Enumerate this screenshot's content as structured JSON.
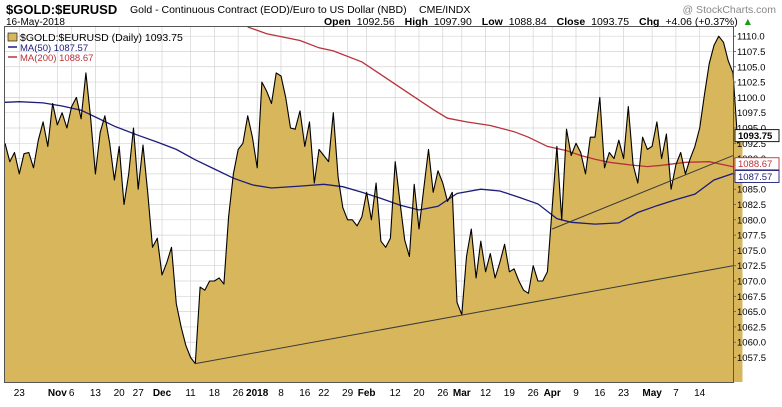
{
  "header": {
    "symbol": "$GOLD:$EURUSD",
    "description": "Gold - Continuous Contract (EOD)/Euro to US Dollar (NBD)",
    "exchange": "CME/INDX",
    "watermark": "@ StockCharts.com",
    "date": "16-May-2018",
    "open_label": "Open",
    "open_value": "1092.56",
    "high_label": "High",
    "high_value": "1097.90",
    "low_label": "Low",
    "low_value": "1088.84",
    "close_label": "Close",
    "close_value": "1093.75",
    "chg_label": "Chg",
    "chg_value": "+4.06 (+0.37%)",
    "up_arrow": "▲"
  },
  "legend": {
    "price": "$GOLD:$EURUSD (Daily) 1093.75",
    "ma50": "MA(50) 1087.57",
    "ma200": "MA(200) 1088.67"
  },
  "colors": {
    "fill": "#d8b75c",
    "price_line": "#000000",
    "ma50": "#1c1c7a",
    "ma200": "#b8323a",
    "grid": "#d4d4d4",
    "trendline": "#3a3a3a"
  },
  "chart_data": {
    "type": "area",
    "y_range": [
      1053.5,
      1111.5
    ],
    "x_range": [
      0,
      153
    ],
    "y_ticks": [
      1057.5,
      1060,
      1062.5,
      1065,
      1067.5,
      1070,
      1072.5,
      1075,
      1077.5,
      1080,
      1082.5,
      1085,
      1087.5,
      1090,
      1092.5,
      1095,
      1097.5,
      1100,
      1102.5,
      1105,
      1107.5,
      1110
    ],
    "x_ticks": [
      {
        "i": 3,
        "label": "23",
        "bold": false
      },
      {
        "i": 11,
        "label": "Nov",
        "bold": true
      },
      {
        "i": 14,
        "label": "6",
        "bold": false
      },
      {
        "i": 19,
        "label": "13",
        "bold": false
      },
      {
        "i": 24,
        "label": "20",
        "bold": false
      },
      {
        "i": 28,
        "label": "27",
        "bold": false
      },
      {
        "i": 33,
        "label": "Dec",
        "bold": true
      },
      {
        "i": 39,
        "label": "11",
        "bold": false
      },
      {
        "i": 44,
        "label": "18",
        "bold": false
      },
      {
        "i": 49,
        "label": "26",
        "bold": false
      },
      {
        "i": 53,
        "label": "2018",
        "bold": true
      },
      {
        "i": 58,
        "label": "8",
        "bold": false
      },
      {
        "i": 63,
        "label": "16",
        "bold": false
      },
      {
        "i": 67,
        "label": "22",
        "bold": false
      },
      {
        "i": 72,
        "label": "29",
        "bold": false
      },
      {
        "i": 76,
        "label": "Feb",
        "bold": true
      },
      {
        "i": 82,
        "label": "12",
        "bold": false
      },
      {
        "i": 87,
        "label": "20",
        "bold": false
      },
      {
        "i": 92,
        "label": "26",
        "bold": false
      },
      {
        "i": 96,
        "label": "Mar",
        "bold": true
      },
      {
        "i": 101,
        "label": "12",
        "bold": false
      },
      {
        "i": 106,
        "label": "19",
        "bold": false
      },
      {
        "i": 111,
        "label": "26",
        "bold": false
      },
      {
        "i": 115,
        "label": "Apr",
        "bold": true
      },
      {
        "i": 120,
        "label": "9",
        "bold": false
      },
      {
        "i": 125,
        "label": "16",
        "bold": false
      },
      {
        "i": 130,
        "label": "23",
        "bold": false
      },
      {
        "i": 136,
        "label": "May",
        "bold": true
      },
      {
        "i": 141,
        "label": "7",
        "bold": false
      },
      {
        "i": 146,
        "label": "14",
        "bold": false
      }
    ],
    "price": [
      1092.5,
      1089.5,
      1091,
      1087.5,
      1090.8,
      1091,
      1088.5,
      1093,
      1096,
      1092,
      1099,
      1095.5,
      1097.5,
      1095,
      1098.5,
      1100,
      1096.5,
      1104,
      1096.7,
      1087.5,
      1094.3,
      1097,
      1092.5,
      1086.5,
      1092,
      1082.5,
      1087.5,
      1095,
      1085,
      1092.2,
      1084.5,
      1075.5,
      1077,
      1071,
      1073,
      1075.5,
      1066.3,
      1062.5,
      1059.5,
      1057.5,
      1056.5,
      1069,
      1068.5,
      1070,
      1070,
      1070.5,
      1069.5,
      1080.5,
      1087.5,
      1091.5,
      1092.5,
      1097,
      1093.5,
      1088.5,
      1102.5,
      1101,
      1099,
      1104,
      1103.5,
      1100,
      1095,
      1094.8,
      1097.8,
      1092,
      1096,
      1086,
      1091.5,
      1090.5,
      1089.5,
      1097.5,
      1087,
      1082,
      1080,
      1080,
      1079,
      1080.5,
      1084.5,
      1080,
      1086,
      1076.5,
      1075.5,
      1077,
      1089.5,
      1083,
      1076.7,
      1074,
      1085.8,
      1078.5,
      1085,
      1091.5,
      1084.5,
      1088,
      1086,
      1083,
      1084.5,
      1066.5,
      1064.5,
      1074,
      1078.5,
      1070.5,
      1076.5,
      1071.5,
      1074.5,
      1070.5,
      1073,
      1076,
      1071.5,
      1072,
      1070,
      1068.5,
      1068,
      1072.5,
      1070,
      1070,
      1071.5,
      1082,
      1092,
      1080,
      1094.8,
      1090.5,
      1092.5,
      1091,
      1087.5,
      1093.5,
      1093.5,
      1100,
      1088.5,
      1091,
      1090,
      1093,
      1090,
      1098.5,
      1089,
      1086,
      1093.5,
      1091.5,
      1092,
      1096,
      1090,
      1094,
      1085,
      1089,
      1091,
      1087.5,
      1090,
      1092,
      1095,
      1100.5,
      1105.5,
      1108.5,
      1110,
      1109,
      1106,
      1104,
      1092.5,
      1093.75
    ],
    "ma50": [
      [
        0,
        1099.2
      ],
      [
        3,
        1099.3
      ],
      [
        8,
        1099.1
      ],
      [
        12,
        1098.6
      ],
      [
        16,
        1097.9
      ],
      [
        19,
        1096.8
      ],
      [
        23,
        1095.3
      ],
      [
        28,
        1093.8
      ],
      [
        32,
        1092.7
      ],
      [
        36,
        1091.5
      ],
      [
        40,
        1089.8
      ],
      [
        44,
        1088.3
      ],
      [
        48,
        1086.8
      ],
      [
        52,
        1085.7
      ],
      [
        56,
        1085.2
      ],
      [
        62,
        1085.5
      ],
      [
        67,
        1085.8
      ],
      [
        71,
        1085.4
      ],
      [
        75,
        1084.5
      ],
      [
        79,
        1083.5
      ],
      [
        83,
        1082.4
      ],
      [
        87,
        1081.6
      ],
      [
        91,
        1082.2
      ],
      [
        95,
        1084.3
      ],
      [
        100,
        1085
      ],
      [
        104,
        1084.7
      ],
      [
        108,
        1083.7
      ],
      [
        112,
        1082.6
      ],
      [
        116,
        1080.2
      ],
      [
        119,
        1079.6
      ],
      [
        124,
        1079.3
      ],
      [
        129,
        1079.5
      ],
      [
        133,
        1081.2
      ],
      [
        137,
        1082.3
      ],
      [
        141,
        1083.3
      ],
      [
        145,
        1084.2
      ],
      [
        149,
        1086.5
      ],
      [
        153,
        1087.57
      ]
    ],
    "ma200": [
      [
        51,
        1111.5
      ],
      [
        55,
        1110.4
      ],
      [
        62,
        1109.3
      ],
      [
        66,
        1108.1
      ],
      [
        69,
        1107.6
      ],
      [
        75,
        1105.8
      ],
      [
        80,
        1103.2
      ],
      [
        85,
        1100.6
      ],
      [
        90,
        1098
      ],
      [
        93,
        1096.6
      ],
      [
        97,
        1096
      ],
      [
        102,
        1095.4
      ],
      [
        107,
        1094.4
      ],
      [
        110,
        1093.5
      ],
      [
        114,
        1092
      ],
      [
        118,
        1091.3
      ],
      [
        121,
        1090.5
      ],
      [
        124,
        1089.9
      ],
      [
        127,
        1089.4
      ],
      [
        131,
        1089
      ],
      [
        135,
        1088.7
      ],
      [
        138,
        1088.9
      ],
      [
        143,
        1089.4
      ],
      [
        148,
        1089.5
      ],
      [
        153,
        1088.67
      ]
    ],
    "trendlines": [
      {
        "from": [
          40,
          1056.5
        ],
        "to": [
          153,
          1072.5
        ]
      },
      {
        "from": [
          115,
          1078.5
        ],
        "to": [
          153,
          1090.5
        ]
      }
    ],
    "price_tags": [
      {
        "value": 1093.75,
        "label": "1093.75",
        "kind": "price"
      },
      {
        "value": 1088.67,
        "label": "1088.67",
        "kind": "ma200"
      },
      {
        "value": 1087.57,
        "label": "1087.57",
        "kind": "ma50"
      }
    ]
  }
}
